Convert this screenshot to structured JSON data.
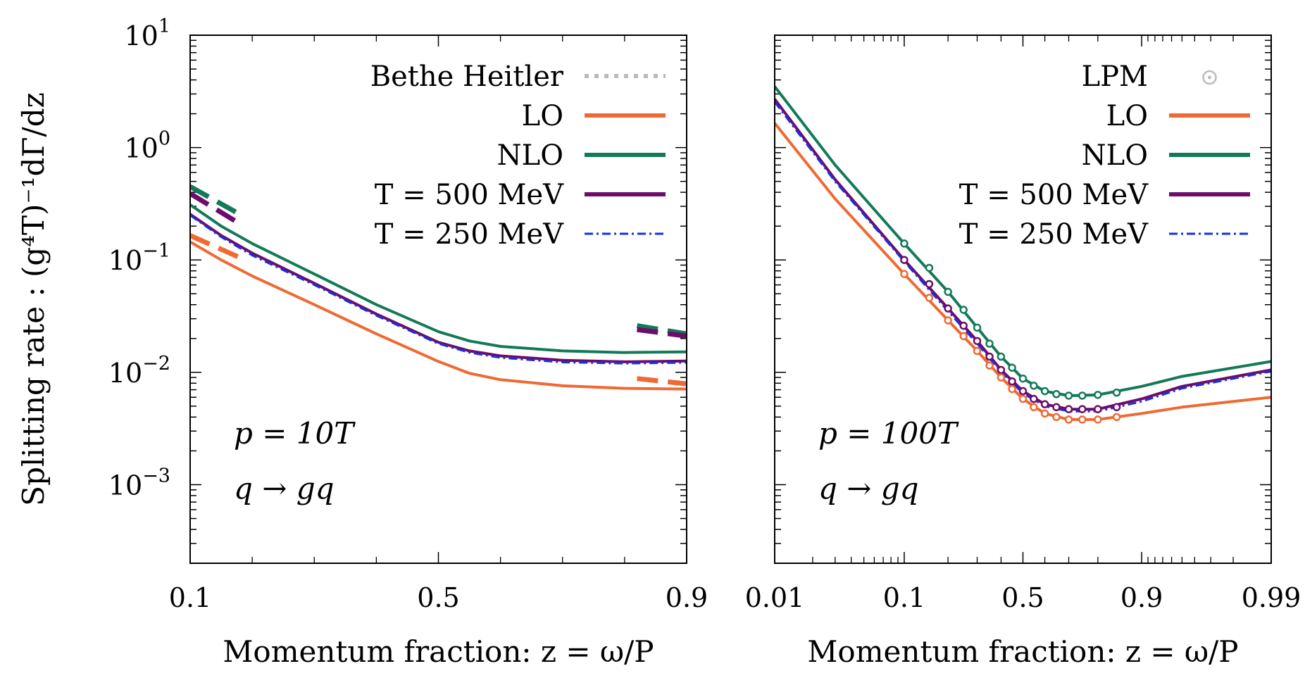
{
  "chart_data": [
    {
      "type": "line",
      "ylabel": "Splitting rate : (g⁴T)⁻¹dΓ/dz",
      "xlabel": "Momentum fraction: z = ω/P",
      "x_scale": "linear",
      "y_scale": "log",
      "xlim": [
        0.1,
        0.9
      ],
      "ylim": [
        0.0002,
        10
      ],
      "x_ticks": [
        0.1,
        0.5,
        0.9
      ],
      "x_tick_labels": [
        "0.1",
        "0.5",
        "0.9"
      ],
      "y_ticks": [
        10,
        1,
        0.1,
        0.01,
        0.001
      ],
      "y_tick_labels": [
        {
          "base": "10",
          "exp": "1"
        },
        {
          "base": "10",
          "exp": "0"
        },
        {
          "base": "10",
          "exp": "−1"
        },
        {
          "base": "10",
          "exp": "−2"
        },
        {
          "base": "10",
          "exp": "−3"
        }
      ],
      "annotations": [
        "p = 10T",
        "q → gq"
      ],
      "legend": {
        "position": "top-right",
        "entries": [
          {
            "label": "Bethe Heitler",
            "style": "dotted",
            "color": "#bbbbbb"
          },
          {
            "label": "LO",
            "style": "solid",
            "color": "#ee6a33"
          },
          {
            "label": "NLO",
            "style": "solid",
            "color": "#137a58"
          },
          {
            "label": "T = 500 MeV",
            "style": "solid",
            "color": "#6c0d6b"
          },
          {
            "label": "T = 250 MeV",
            "style": "dashdot",
            "color": "#1830e0"
          }
        ]
      },
      "series": [
        {
          "name": "LO",
          "color": "#ee6a33",
          "style": "solid",
          "x": [
            0.1,
            0.15,
            0.2,
            0.3,
            0.4,
            0.5,
            0.55,
            0.6,
            0.7,
            0.8,
            0.9
          ],
          "y": [
            0.145,
            0.1,
            0.072,
            0.04,
            0.022,
            0.0125,
            0.0098,
            0.0086,
            0.0076,
            0.0072,
            0.0071
          ]
        },
        {
          "name": "NLO",
          "color": "#137a58",
          "style": "solid",
          "x": [
            0.1,
            0.15,
            0.2,
            0.3,
            0.4,
            0.5,
            0.55,
            0.6,
            0.7,
            0.8,
            0.9
          ],
          "y": [
            0.31,
            0.2,
            0.14,
            0.075,
            0.04,
            0.023,
            0.019,
            0.017,
            0.0155,
            0.015,
            0.0152
          ]
        },
        {
          "name": "T = 500 MeV",
          "color": "#6c0d6b",
          "style": "solid",
          "x": [
            0.1,
            0.15,
            0.2,
            0.3,
            0.4,
            0.5,
            0.55,
            0.6,
            0.7,
            0.8,
            0.9
          ],
          "y": [
            0.255,
            0.165,
            0.115,
            0.062,
            0.033,
            0.0185,
            0.0155,
            0.014,
            0.0128,
            0.0124,
            0.0126
          ]
        },
        {
          "name": "T = 250 MeV",
          "color": "#1830e0",
          "style": "dashdot",
          "x": [
            0.1,
            0.15,
            0.2,
            0.3,
            0.4,
            0.5,
            0.55,
            0.6,
            0.7,
            0.8,
            0.9
          ],
          "y": [
            0.25,
            0.16,
            0.11,
            0.06,
            0.032,
            0.018,
            0.015,
            0.0135,
            0.0123,
            0.012,
            0.0122
          ]
        },
        {
          "name": "LO",
          "color": "#ee6a33",
          "style": "dashed",
          "x": [
            0.1,
            0.18
          ],
          "y": [
            0.165,
            0.105
          ]
        },
        {
          "name": "NLO",
          "color": "#137a58",
          "style": "dashed",
          "x": [
            0.1,
            0.18
          ],
          "y": [
            0.45,
            0.255
          ]
        },
        {
          "name": "T = 500 MeV",
          "color": "#6c0d6b",
          "style": "dashed",
          "x": [
            0.1,
            0.18
          ],
          "y": [
            0.39,
            0.21
          ]
        },
        {
          "name": "LO",
          "color": "#ee6a33",
          "style": "dashed",
          "x": [
            0.82,
            0.9
          ],
          "y": [
            0.0088,
            0.0079
          ]
        },
        {
          "name": "NLO",
          "color": "#137a58",
          "style": "dashed",
          "x": [
            0.82,
            0.9
          ],
          "y": [
            0.026,
            0.022
          ]
        },
        {
          "name": "T = 500 MeV",
          "color": "#6c0d6b",
          "style": "dashed",
          "x": [
            0.82,
            0.9
          ],
          "y": [
            0.024,
            0.021
          ]
        }
      ]
    },
    {
      "type": "line",
      "xlabel": "Momentum fraction: z = ω/P",
      "x_scale": "logit",
      "y_scale": "log",
      "xlim": [
        0.01,
        0.99
      ],
      "ylim": [
        0.0002,
        10
      ],
      "x_ticks": [
        0.01,
        0.1,
        0.5,
        0.9,
        0.99
      ],
      "x_tick_labels": [
        "0.01",
        "0.1",
        "0.5",
        "0.9",
        "0.99"
      ],
      "annotations": [
        "p = 100T",
        "q → gq"
      ],
      "legend": {
        "position": "top-right",
        "entries": [
          {
            "label": "LPM",
            "style": "circle",
            "color": "#bbbbbb"
          },
          {
            "label": "LO",
            "style": "solid",
            "color": "#ee6a33"
          },
          {
            "label": "NLO",
            "style": "solid",
            "color": "#137a58"
          },
          {
            "label": "T = 500 MeV",
            "style": "solid",
            "color": "#6c0d6b"
          },
          {
            "label": "T = 250 MeV",
            "style": "dashdot",
            "color": "#1830e0"
          }
        ]
      },
      "series": [
        {
          "name": "LO",
          "color": "#ee6a33",
          "style": "solid",
          "x": [
            0.01,
            0.03,
            0.1,
            0.2,
            0.3,
            0.4,
            0.5,
            0.6,
            0.7,
            0.8,
            0.9,
            0.95,
            0.99
          ],
          "y": [
            1.65,
            0.35,
            0.075,
            0.029,
            0.0155,
            0.009,
            0.0058,
            0.0043,
            0.0038,
            0.0038,
            0.0043,
            0.0049,
            0.006
          ]
        },
        {
          "name": "NLO",
          "color": "#137a58",
          "style": "solid",
          "x": [
            0.01,
            0.03,
            0.1,
            0.2,
            0.3,
            0.4,
            0.5,
            0.6,
            0.7,
            0.8,
            0.9,
            0.95,
            0.99
          ],
          "y": [
            3.5,
            0.7,
            0.14,
            0.052,
            0.025,
            0.0138,
            0.0088,
            0.0068,
            0.0062,
            0.0063,
            0.0075,
            0.0092,
            0.0125
          ]
        },
        {
          "name": "T = 500 MeV",
          "color": "#6c0d6b",
          "style": "solid",
          "x": [
            0.01,
            0.03,
            0.1,
            0.2,
            0.3,
            0.4,
            0.5,
            0.6,
            0.7,
            0.8,
            0.9,
            0.95,
            0.99
          ],
          "y": [
            2.7,
            0.52,
            0.1,
            0.037,
            0.019,
            0.0105,
            0.0068,
            0.0052,
            0.0047,
            0.0047,
            0.0058,
            0.0075,
            0.0105
          ]
        },
        {
          "name": "T = 250 MeV",
          "color": "#1830e0",
          "style": "dashdot",
          "x": [
            0.01,
            0.03,
            0.1,
            0.2,
            0.3,
            0.4,
            0.5,
            0.6,
            0.7,
            0.8,
            0.9,
            0.95,
            0.99
          ],
          "y": [
            2.55,
            0.5,
            0.097,
            0.035,
            0.018,
            0.0101,
            0.0065,
            0.005,
            0.0045,
            0.0045,
            0.0055,
            0.0072,
            0.0102
          ]
        },
        {
          "name": "LPM",
          "color": "#137a58",
          "style": "circle",
          "x": [
            0.1,
            0.15,
            0.2,
            0.25,
            0.3,
            0.35,
            0.4,
            0.45,
            0.5,
            0.55,
            0.6,
            0.65,
            0.7,
            0.75,
            0.8,
            0.85
          ],
          "y": [
            0.14,
            0.085,
            0.052,
            0.036,
            0.025,
            0.018,
            0.0138,
            0.011,
            0.0088,
            0.0076,
            0.0068,
            0.0064,
            0.0062,
            0.0062,
            0.0063,
            0.0066
          ]
        },
        {
          "name": "LPM",
          "color": "#6c0d6b",
          "style": "circle",
          "x": [
            0.1,
            0.15,
            0.2,
            0.25,
            0.3,
            0.35,
            0.4,
            0.45,
            0.5,
            0.55,
            0.6,
            0.65,
            0.7,
            0.75,
            0.8,
            0.85
          ],
          "y": [
            0.1,
            0.061,
            0.037,
            0.026,
            0.019,
            0.0138,
            0.0105,
            0.0083,
            0.0068,
            0.0058,
            0.0052,
            0.0049,
            0.0047,
            0.0047,
            0.0047,
            0.0049
          ]
        },
        {
          "name": "LPM",
          "color": "#ee6a33",
          "style": "circle",
          "x": [
            0.1,
            0.15,
            0.2,
            0.25,
            0.3,
            0.35,
            0.4,
            0.45,
            0.5,
            0.55,
            0.6,
            0.65,
            0.7,
            0.75,
            0.8,
            0.85
          ],
          "y": [
            0.075,
            0.046,
            0.029,
            0.021,
            0.0155,
            0.0115,
            0.009,
            0.0071,
            0.0058,
            0.0049,
            0.0043,
            0.004,
            0.0038,
            0.0038,
            0.0038,
            0.004
          ]
        }
      ]
    }
  ]
}
